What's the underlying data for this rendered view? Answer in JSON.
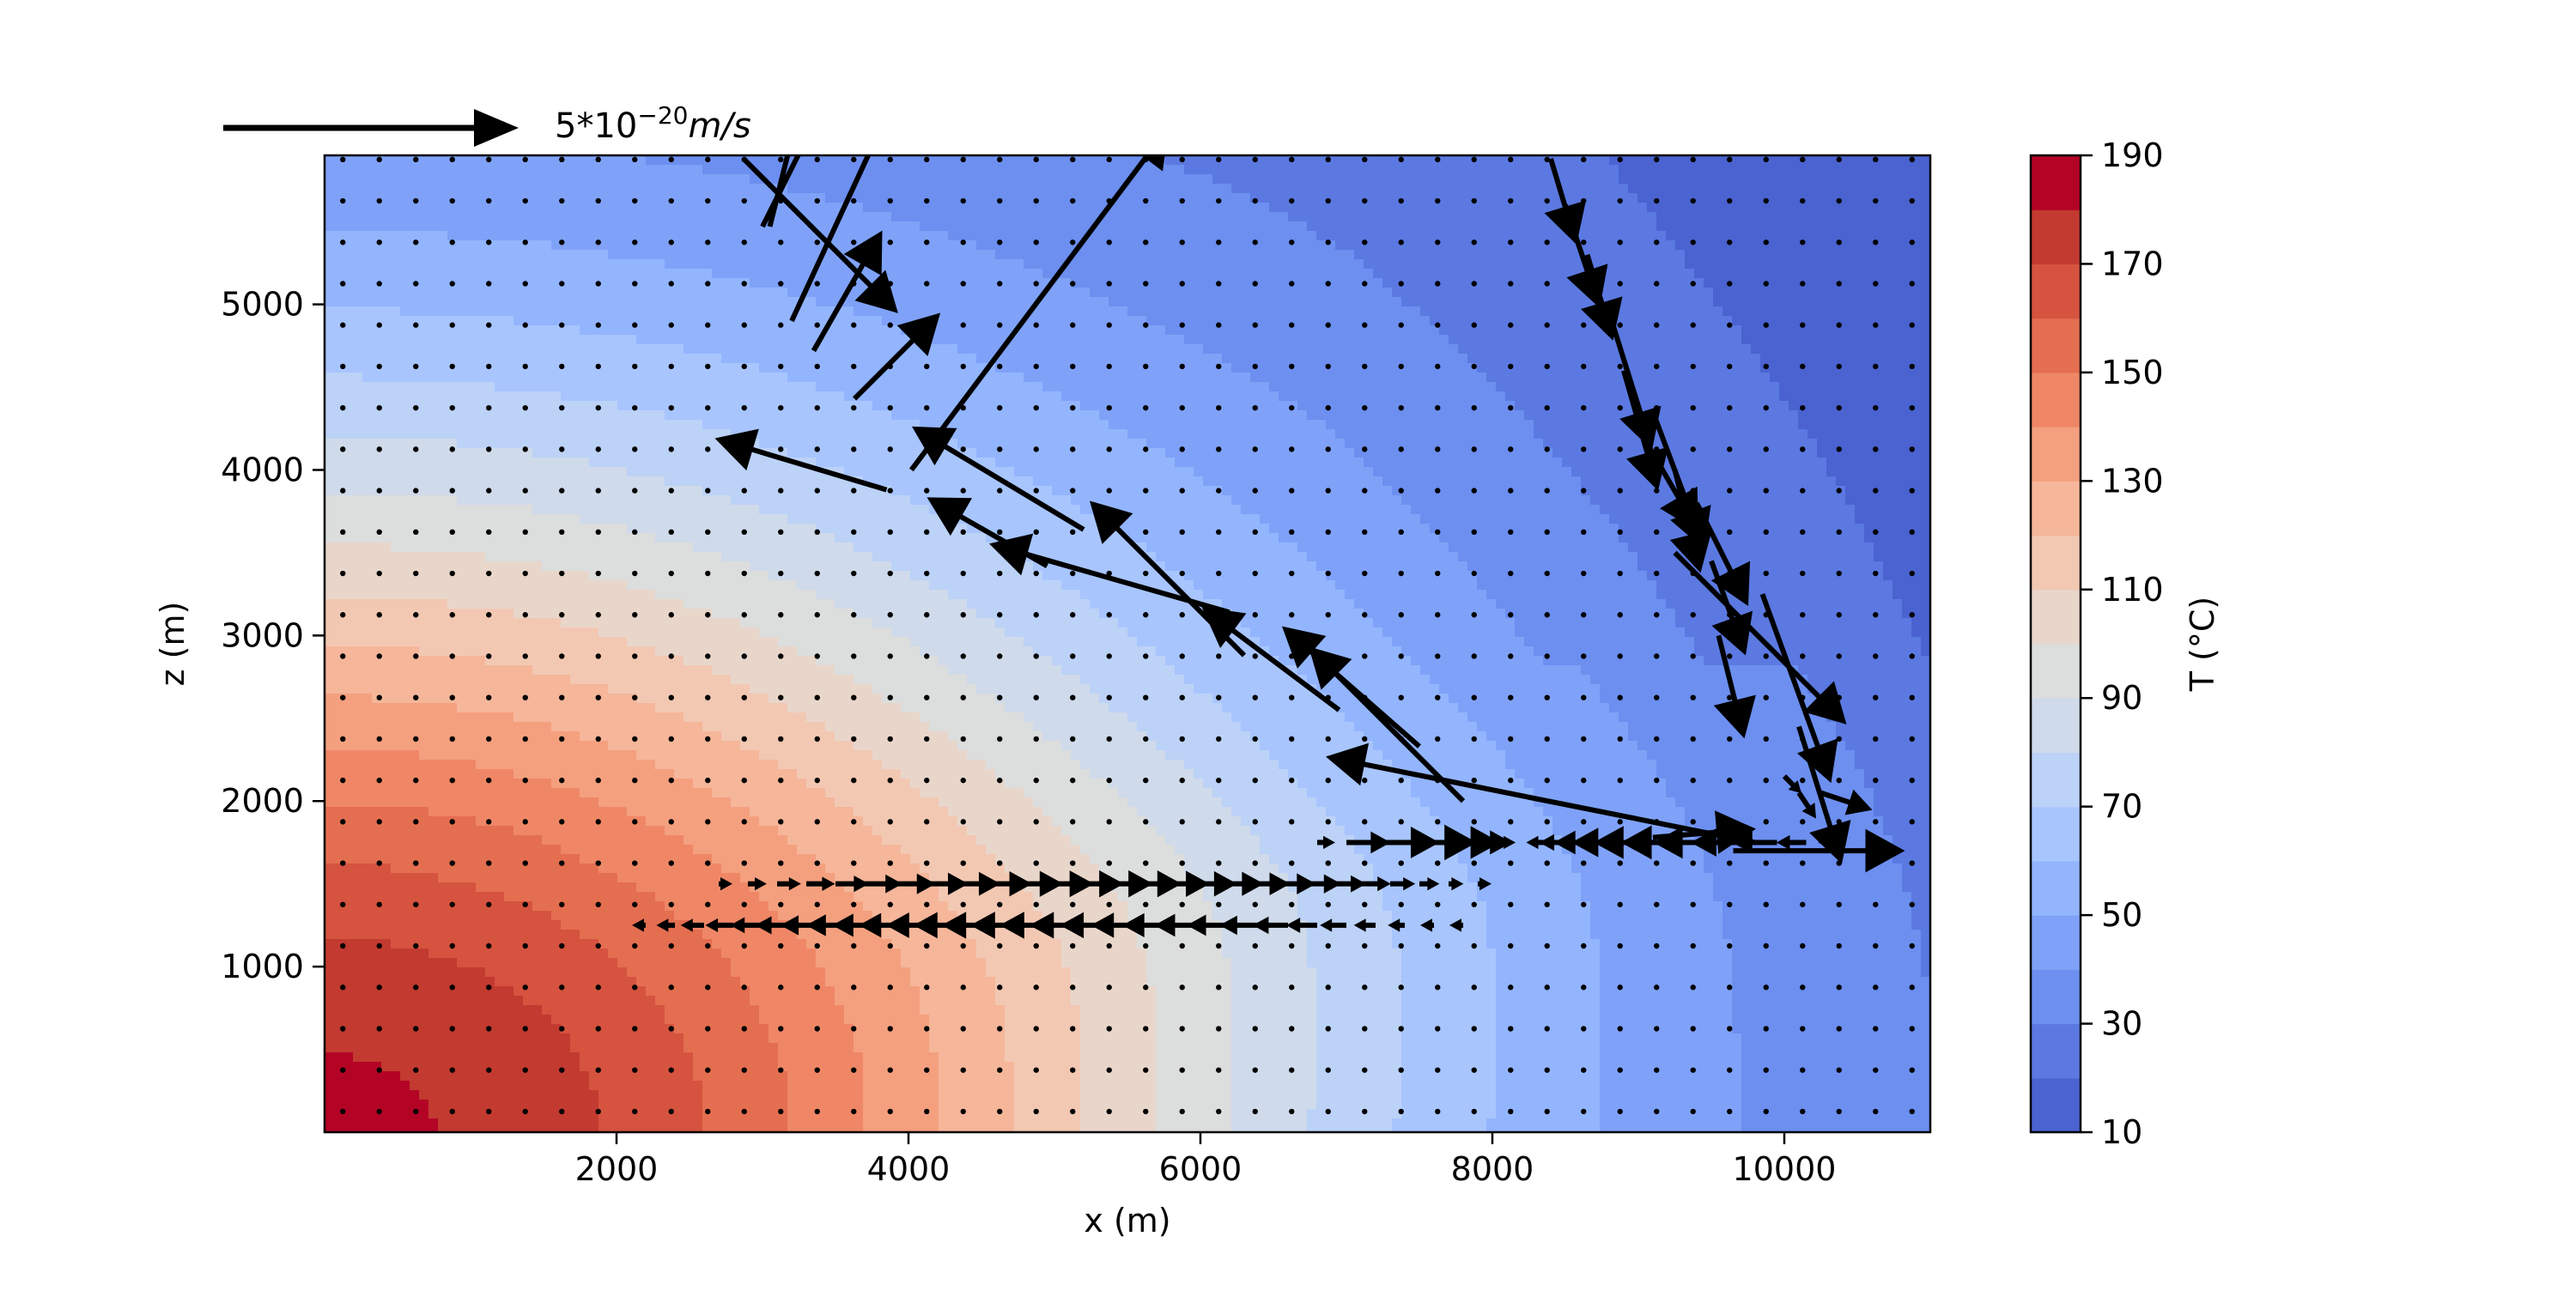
{
  "chart_data": {
    "type": "contour+quiver",
    "title": "",
    "xlabel": "x (m)",
    "ylabel": "z (m)",
    "xlim": [
      0,
      11000
    ],
    "ylim": [
      0,
      5900
    ],
    "xticks": [
      2000,
      4000,
      6000,
      8000,
      10000
    ],
    "yticks": [
      1000,
      2000,
      3000,
      4000,
      5000
    ],
    "colorbar": {
      "label": "T (°C)",
      "levels": [
        10,
        20,
        30,
        40,
        50,
        60,
        70,
        80,
        90,
        100,
        110,
        120,
        130,
        140,
        150,
        160,
        170,
        180,
        190
      ],
      "ticks": [
        10,
        30,
        50,
        70,
        90,
        110,
        130,
        150,
        170,
        190
      ],
      "colormap": "coolwarm",
      "colors": [
        "#4a63d0",
        "#5b79e1",
        "#6c8ff0",
        "#7fa2f8",
        "#93b5fe",
        "#a8c5fe",
        "#bcd2f7",
        "#cfdaea",
        "#dcdddd",
        "#e9d6cb",
        "#f2c8b3",
        "#f5b69a",
        "#f4a07f",
        "#ef8766",
        "#e46e50",
        "#d5533f",
        "#c23a30",
        "#b40426"
      ]
    },
    "temperature_field": {
      "description": "Peak at bottom-left corner, decreasing toward top and right",
      "max": 190,
      "min": 10
    },
    "quiver_key": {
      "label_base": "5*10",
      "label_exp": "−20",
      "label_unit": "m/s",
      "magnitude": 5e-20
    },
    "quiver_grid": {
      "dx": 250,
      "dz": 250,
      "x_start": 125,
      "z_start": 125
    },
    "flow_vectors": [
      {
        "x": 2870,
        "z": 5880,
        "u": 0.9,
        "v": -0.9
      },
      {
        "x": 3000,
        "z": 5470,
        "u": 0.7,
        "v": 1.4
      },
      {
        "x": 3050,
        "z": 5470,
        "u": 0.25,
        "v": 1.0
      },
      {
        "x": 3200,
        "z": 4900,
        "u": 0.6,
        "v": 1.3
      },
      {
        "x": 3350,
        "z": 4720,
        "u": 0.4,
        "v": 0.7
      },
      {
        "x": 3630,
        "z": 4430,
        "u": 0.5,
        "v": 0.5
      },
      {
        "x": 4020,
        "z": 4000,
        "u": 1.5,
        "v": 2.0
      },
      {
        "x": 3850,
        "z": 3880,
        "u": -1.0,
        "v": 0.3
      },
      {
        "x": 5200,
        "z": 3640,
        "u": -1.0,
        "v": 0.6
      },
      {
        "x": 4950,
        "z": 3420,
        "u": -0.7,
        "v": 0.4
      },
      {
        "x": 6200,
        "z": 3140,
        "u": -1.4,
        "v": 0.4
      },
      {
        "x": 6300,
        "z": 2880,
        "u": -0.9,
        "v": 0.9
      },
      {
        "x": 6950,
        "z": 2550,
        "u": -0.8,
        "v": 0.6
      },
      {
        "x": 7500,
        "z": 2330,
        "u": -0.8,
        "v": 0.7
      },
      {
        "x": 7800,
        "z": 2000,
        "u": -0.9,
        "v": 0.9
      },
      {
        "x": 8400,
        "z": 5880,
        "u": 0.15,
        "v": -0.5
      },
      {
        "x": 8500,
        "z": 5600,
        "u": 0.2,
        "v": -0.6
      },
      {
        "x": 8650,
        "z": 5300,
        "u": 0.15,
        "v": -0.5
      },
      {
        "x": 8800,
        "z": 4950,
        "u": 0.25,
        "v": -0.8
      },
      {
        "x": 8900,
        "z": 4600,
        "u": 0.2,
        "v": -0.7
      },
      {
        "x": 9100,
        "z": 4350,
        "u": 0.3,
        "v": -0.8
      },
      {
        "x": 9000,
        "z": 4250,
        "u": 0.35,
        "v": -0.6
      },
      {
        "x": 9250,
        "z": 4000,
        "u": 0.15,
        "v": -0.6
      },
      {
        "x": 9400,
        "z": 3800,
        "u": 0.3,
        "v": -0.6
      },
      {
        "x": 9500,
        "z": 3450,
        "u": 0.2,
        "v": -0.55
      },
      {
        "x": 9550,
        "z": 3000,
        "u": 0.15,
        "v": -0.6
      },
      {
        "x": 9250,
        "z": 3500,
        "u": 1.0,
        "v": -1.0
      },
      {
        "x": 9850,
        "z": 3250,
        "u": 0.4,
        "v": -1.1
      },
      {
        "x": 10100,
        "z": 2450,
        "u": 0.25,
        "v": -0.8
      },
      {
        "x": 9800,
        "z": 1750,
        "u": -2.5,
        "v": 0.5
      },
      {
        "x": 10000,
        "z": 2150,
        "u": 0.1,
        "v": -0.1
      },
      {
        "x": 10100,
        "z": 2050,
        "u": 0.1,
        "v": -0.15
      },
      {
        "x": 10250,
        "z": 2050,
        "u": 0.3,
        "v": -0.1
      },
      {
        "x": 9650,
        "z": 1700,
        "u": 1.0,
        "v": 0.0
      },
      {
        "x": 9100,
        "z": 1780,
        "u": 0.6,
        "v": 0.05
      }
    ],
    "jet_vectors": {
      "eastward": {
        "z": 1500,
        "x_from": 2700,
        "x_to": 8000,
        "max_u": 0.32
      },
      "westward": {
        "z": 1250,
        "x_from": 2200,
        "x_to": 7800,
        "max_u": 0.32
      },
      "upper_east": {
        "z": 1750,
        "x_from": 6800,
        "x_to": 8100,
        "max_u": 0.42
      },
      "upper_west": {
        "z": 1750,
        "x_from": 8350,
        "x_to": 10400,
        "max_u": 0.4
      }
    },
    "grid": false,
    "legend": "none"
  }
}
